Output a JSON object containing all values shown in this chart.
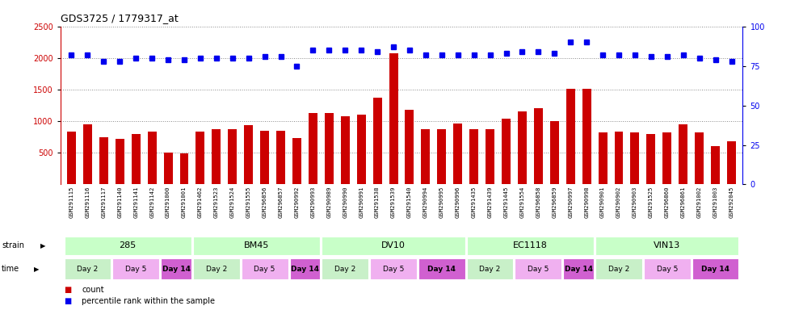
{
  "title": "GDS3725 / 1779317_at",
  "samples": [
    "GSM291115",
    "GSM291116",
    "GSM291117",
    "GSM291140",
    "GSM291141",
    "GSM291142",
    "GSM291000",
    "GSM291001",
    "GSM291462",
    "GSM291523",
    "GSM291524",
    "GSM291555",
    "GSM296856",
    "GSM296857",
    "GSM290992",
    "GSM290993",
    "GSM290989",
    "GSM290990",
    "GSM290991",
    "GSM291538",
    "GSM291539",
    "GSM291540",
    "GSM290994",
    "GSM290995",
    "GSM290996",
    "GSM291435",
    "GSM291439",
    "GSM291445",
    "GSM291554",
    "GSM296858",
    "GSM296859",
    "GSM290997",
    "GSM290998",
    "GSM290901",
    "GSM290902",
    "GSM290903",
    "GSM291525",
    "GSM296860",
    "GSM296861",
    "GSM291002",
    "GSM291003",
    "GSM292045"
  ],
  "counts": [
    840,
    950,
    750,
    720,
    800,
    830,
    510,
    490,
    840,
    870,
    880,
    940,
    850,
    850,
    730,
    1130,
    1130,
    1080,
    1100,
    1370,
    2080,
    1180,
    870,
    870,
    960,
    870,
    870,
    1040,
    1150,
    1210,
    1000,
    1510,
    1510,
    820,
    830,
    820,
    800,
    820,
    950,
    820,
    600,
    680
  ],
  "percentiles": [
    82,
    82,
    78,
    78,
    80,
    80,
    79,
    79,
    80,
    80,
    80,
    80,
    81,
    81,
    75,
    85,
    85,
    85,
    85,
    84,
    87,
    85,
    82,
    82,
    82,
    82,
    82,
    83,
    84,
    84,
    83,
    90,
    90,
    82,
    82,
    82,
    81,
    81,
    82,
    80,
    79,
    78
  ],
  "strains": [
    {
      "label": "285",
      "start": 0,
      "end": 8
    },
    {
      "label": "BM45",
      "start": 8,
      "end": 16
    },
    {
      "label": "DV10",
      "start": 16,
      "end": 25
    },
    {
      "label": "EC1118",
      "start": 25,
      "end": 33
    },
    {
      "label": "VIN13",
      "start": 33,
      "end": 42
    }
  ],
  "time_groups": [
    {
      "label": "Day 2",
      "start": 0,
      "end": 3,
      "color": "#c8f0c8"
    },
    {
      "label": "Day 5",
      "start": 3,
      "end": 6,
      "color": "#f0b0f0"
    },
    {
      "label": "Day 14",
      "start": 6,
      "end": 8,
      "color": "#d060d0"
    },
    {
      "label": "Day 2",
      "start": 8,
      "end": 11,
      "color": "#c8f0c8"
    },
    {
      "label": "Day 5",
      "start": 11,
      "end": 14,
      "color": "#f0b0f0"
    },
    {
      "label": "Day 14",
      "start": 14,
      "end": 16,
      "color": "#d060d0"
    },
    {
      "label": "Day 2",
      "start": 16,
      "end": 19,
      "color": "#c8f0c8"
    },
    {
      "label": "Day 5",
      "start": 19,
      "end": 22,
      "color": "#f0b0f0"
    },
    {
      "label": "Day 14",
      "start": 22,
      "end": 25,
      "color": "#d060d0"
    },
    {
      "label": "Day 2",
      "start": 25,
      "end": 28,
      "color": "#c8f0c8"
    },
    {
      "label": "Day 5",
      "start": 28,
      "end": 31,
      "color": "#f0b0f0"
    },
    {
      "label": "Day 14",
      "start": 31,
      "end": 33,
      "color": "#d060d0"
    },
    {
      "label": "Day 2",
      "start": 33,
      "end": 36,
      "color": "#c8f0c8"
    },
    {
      "label": "Day 5",
      "start": 36,
      "end": 39,
      "color": "#f0b0f0"
    },
    {
      "label": "Day 14",
      "start": 39,
      "end": 42,
      "color": "#d060d0"
    }
  ],
  "ylim_left": [
    0,
    2500
  ],
  "ylim_right": [
    0,
    100
  ],
  "yticks_left": [
    500,
    1000,
    1500,
    2000,
    2500
  ],
  "yticks_right": [
    0,
    25,
    50,
    75,
    100
  ],
  "bar_color": "#cc0000",
  "dot_color": "#0000ee",
  "grid_color": "#888888",
  "label_bg_color": "#d8d8d8",
  "strain_bg_color": "#c8ffc8",
  "background_color": "#ffffff"
}
